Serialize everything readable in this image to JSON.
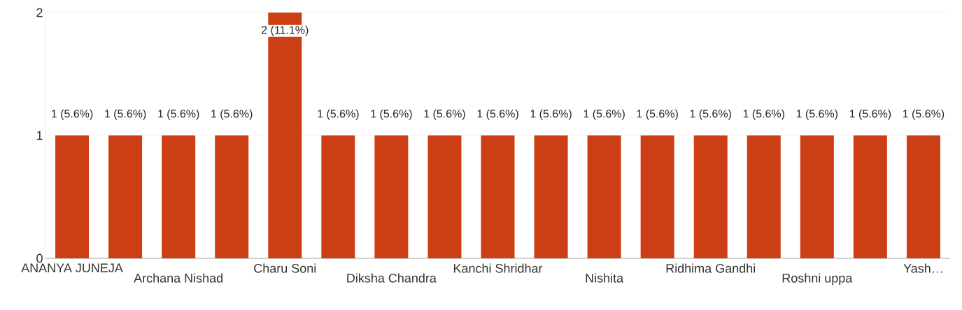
{
  "chart_data": {
    "type": "bar",
    "categories": [
      "ANANYA JUNEJA",
      null,
      "Archana Nishad",
      null,
      "Charu Soni",
      null,
      "Diksha Chandra",
      null,
      "Kanchi Shridhar",
      null,
      "Nishita",
      null,
      "Ridhima Gandhi",
      null,
      "Roshni uppa",
      null,
      "Yash…"
    ],
    "values": [
      1,
      1,
      1,
      1,
      2,
      1,
      1,
      1,
      1,
      1,
      1,
      1,
      1,
      1,
      1,
      1,
      1
    ],
    "value_labels": [
      "1 (5.6%)",
      "1 (5.6%)",
      "1 (5.6%)",
      "1 (5.6%)",
      "2 (11.1%)",
      "1 (5.6%)",
      "1 (5.6%)",
      "1 (5.6%)",
      "1 (5.6%)",
      "1 (5.6%)",
      "1 (5.6%)",
      "1 (5.6%)",
      "1 (5.6%)",
      "1 (5.6%)",
      "1 (5.6%)",
      "1 (5.6%)",
      "1 (5.6%)"
    ],
    "color": "#cc3e13",
    "ylim": [
      0,
      2
    ],
    "yticks": [
      0,
      1,
      2
    ],
    "grid": "y"
  }
}
